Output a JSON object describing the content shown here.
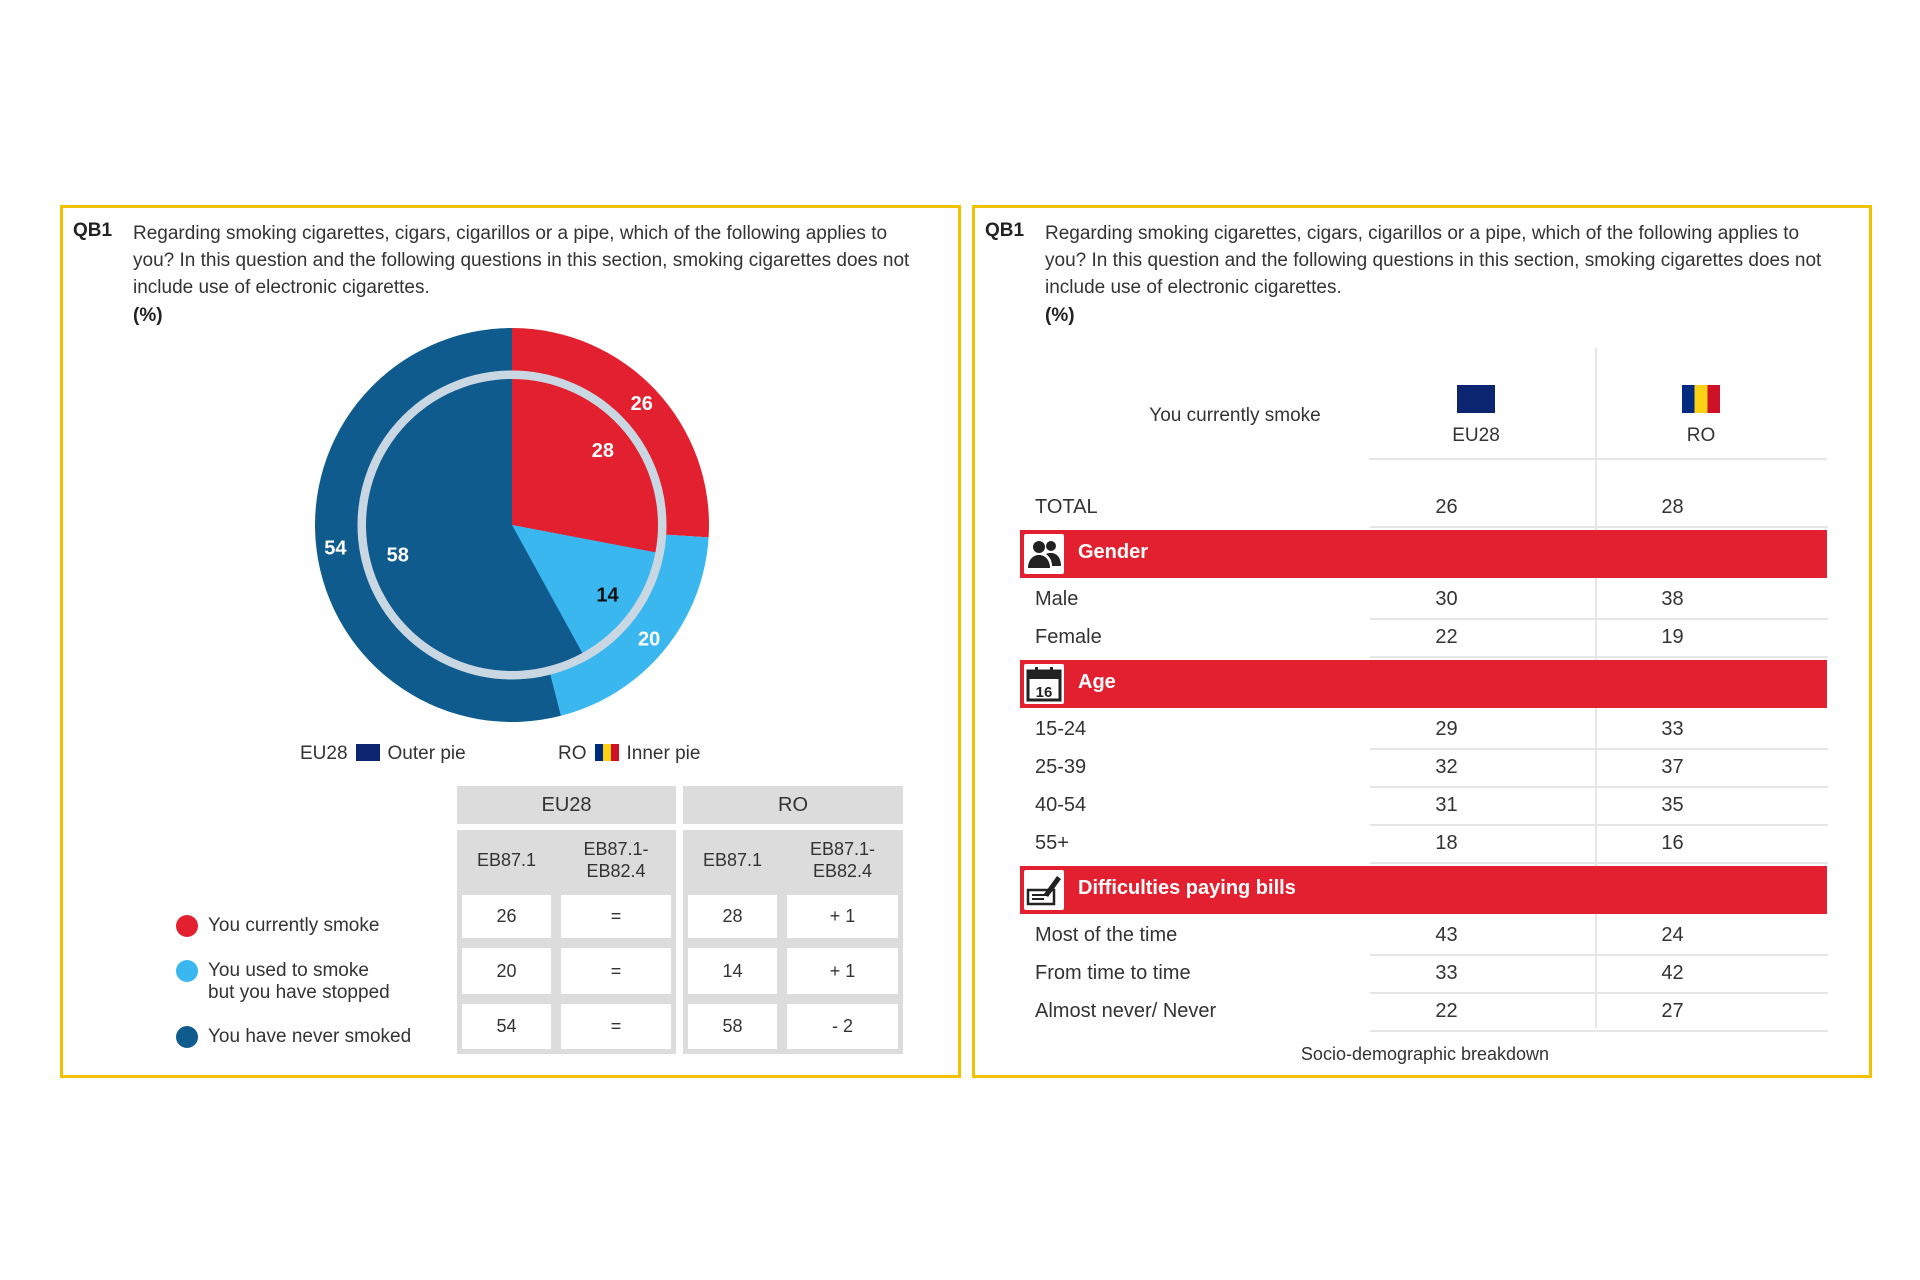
{
  "question": {
    "code": "QB1",
    "text": "Regarding smoking cigarettes, cigars, cigarillos or a pipe, which of the following applies to you? In this question and the following questions in this section, smoking cigarettes does not include use of electronic cigarettes.",
    "unit": "(%)"
  },
  "colors": {
    "current": "#e3202f",
    "former": "#3ab7ef",
    "never": "#0f5b8e",
    "frame": "#f2c100"
  },
  "chart_data": [
    {
      "type": "pie",
      "title": "",
      "categories": [
        "You currently smoke",
        "You used to smoke but you have stopped",
        "You have never smoked"
      ],
      "series": [
        {
          "name": "EU28",
          "values": [
            26,
            20,
            54
          ]
        },
        {
          "name": "RO",
          "values": [
            28,
            14,
            58
          ]
        }
      ],
      "legend": [
        {
          "label": "EU28",
          "flag_icon": "eu-flag-icon",
          "description": "Outer pie"
        },
        {
          "label": "RO",
          "flag_icon": "ro-flag-icon",
          "description": "Inner pie"
        }
      ]
    },
    {
      "type": "table",
      "title": "",
      "groups": [
        "EU28",
        "RO"
      ],
      "columns": [
        "EB87.1",
        "EB87.1-\nEB82.4",
        "EB87.1",
        "EB87.1-\nEB82.4"
      ],
      "rows": [
        {
          "label": "You currently smoke",
          "values": [
            "26",
            "=",
            "28",
            "+ 1"
          ]
        },
        {
          "label": "You used to smoke\nbut you have stopped",
          "values": [
            "20",
            "=",
            "14",
            "+ 1"
          ]
        },
        {
          "label": "You have never smoked",
          "values": [
            "54",
            "=",
            "58",
            "- 2"
          ]
        }
      ]
    },
    {
      "type": "table",
      "title": "You currently smoke",
      "columns": [
        {
          "label": "EU28",
          "flag_icon": "eu-flag-icon"
        },
        {
          "label": "RO",
          "flag_icon": "ro-flag-icon"
        }
      ],
      "total": {
        "label": "TOTAL",
        "values": [
          "26",
          "28"
        ]
      },
      "sections": [
        {
          "title": "Gender",
          "icon": "people-icon",
          "rows": [
            {
              "label": "Male",
              "values": [
                "30",
                "38"
              ]
            },
            {
              "label": "Female",
              "values": [
                "22",
                "19"
              ]
            }
          ]
        },
        {
          "title": "Age",
          "icon": "calendar-16-icon",
          "rows": [
            {
              "label": "15-24",
              "values": [
                "29",
                "33"
              ]
            },
            {
              "label": "25-39",
              "values": [
                "32",
                "37"
              ]
            },
            {
              "label": "40-54",
              "values": [
                "31",
                "35"
              ]
            },
            {
              "label": "55+",
              "values": [
                "18",
                "16"
              ]
            }
          ]
        },
        {
          "title": "Difficulties paying bills",
          "icon": "bills-pen-icon",
          "rows": [
            {
              "label": "Most of the time",
              "values": [
                "43",
                "24"
              ]
            },
            {
              "label": "From time to time",
              "values": [
                "33",
                "42"
              ]
            },
            {
              "label": "Almost never/ Never",
              "values": [
                "22",
                "27"
              ]
            }
          ]
        }
      ],
      "footnote": "Socio-demographic breakdown"
    }
  ]
}
